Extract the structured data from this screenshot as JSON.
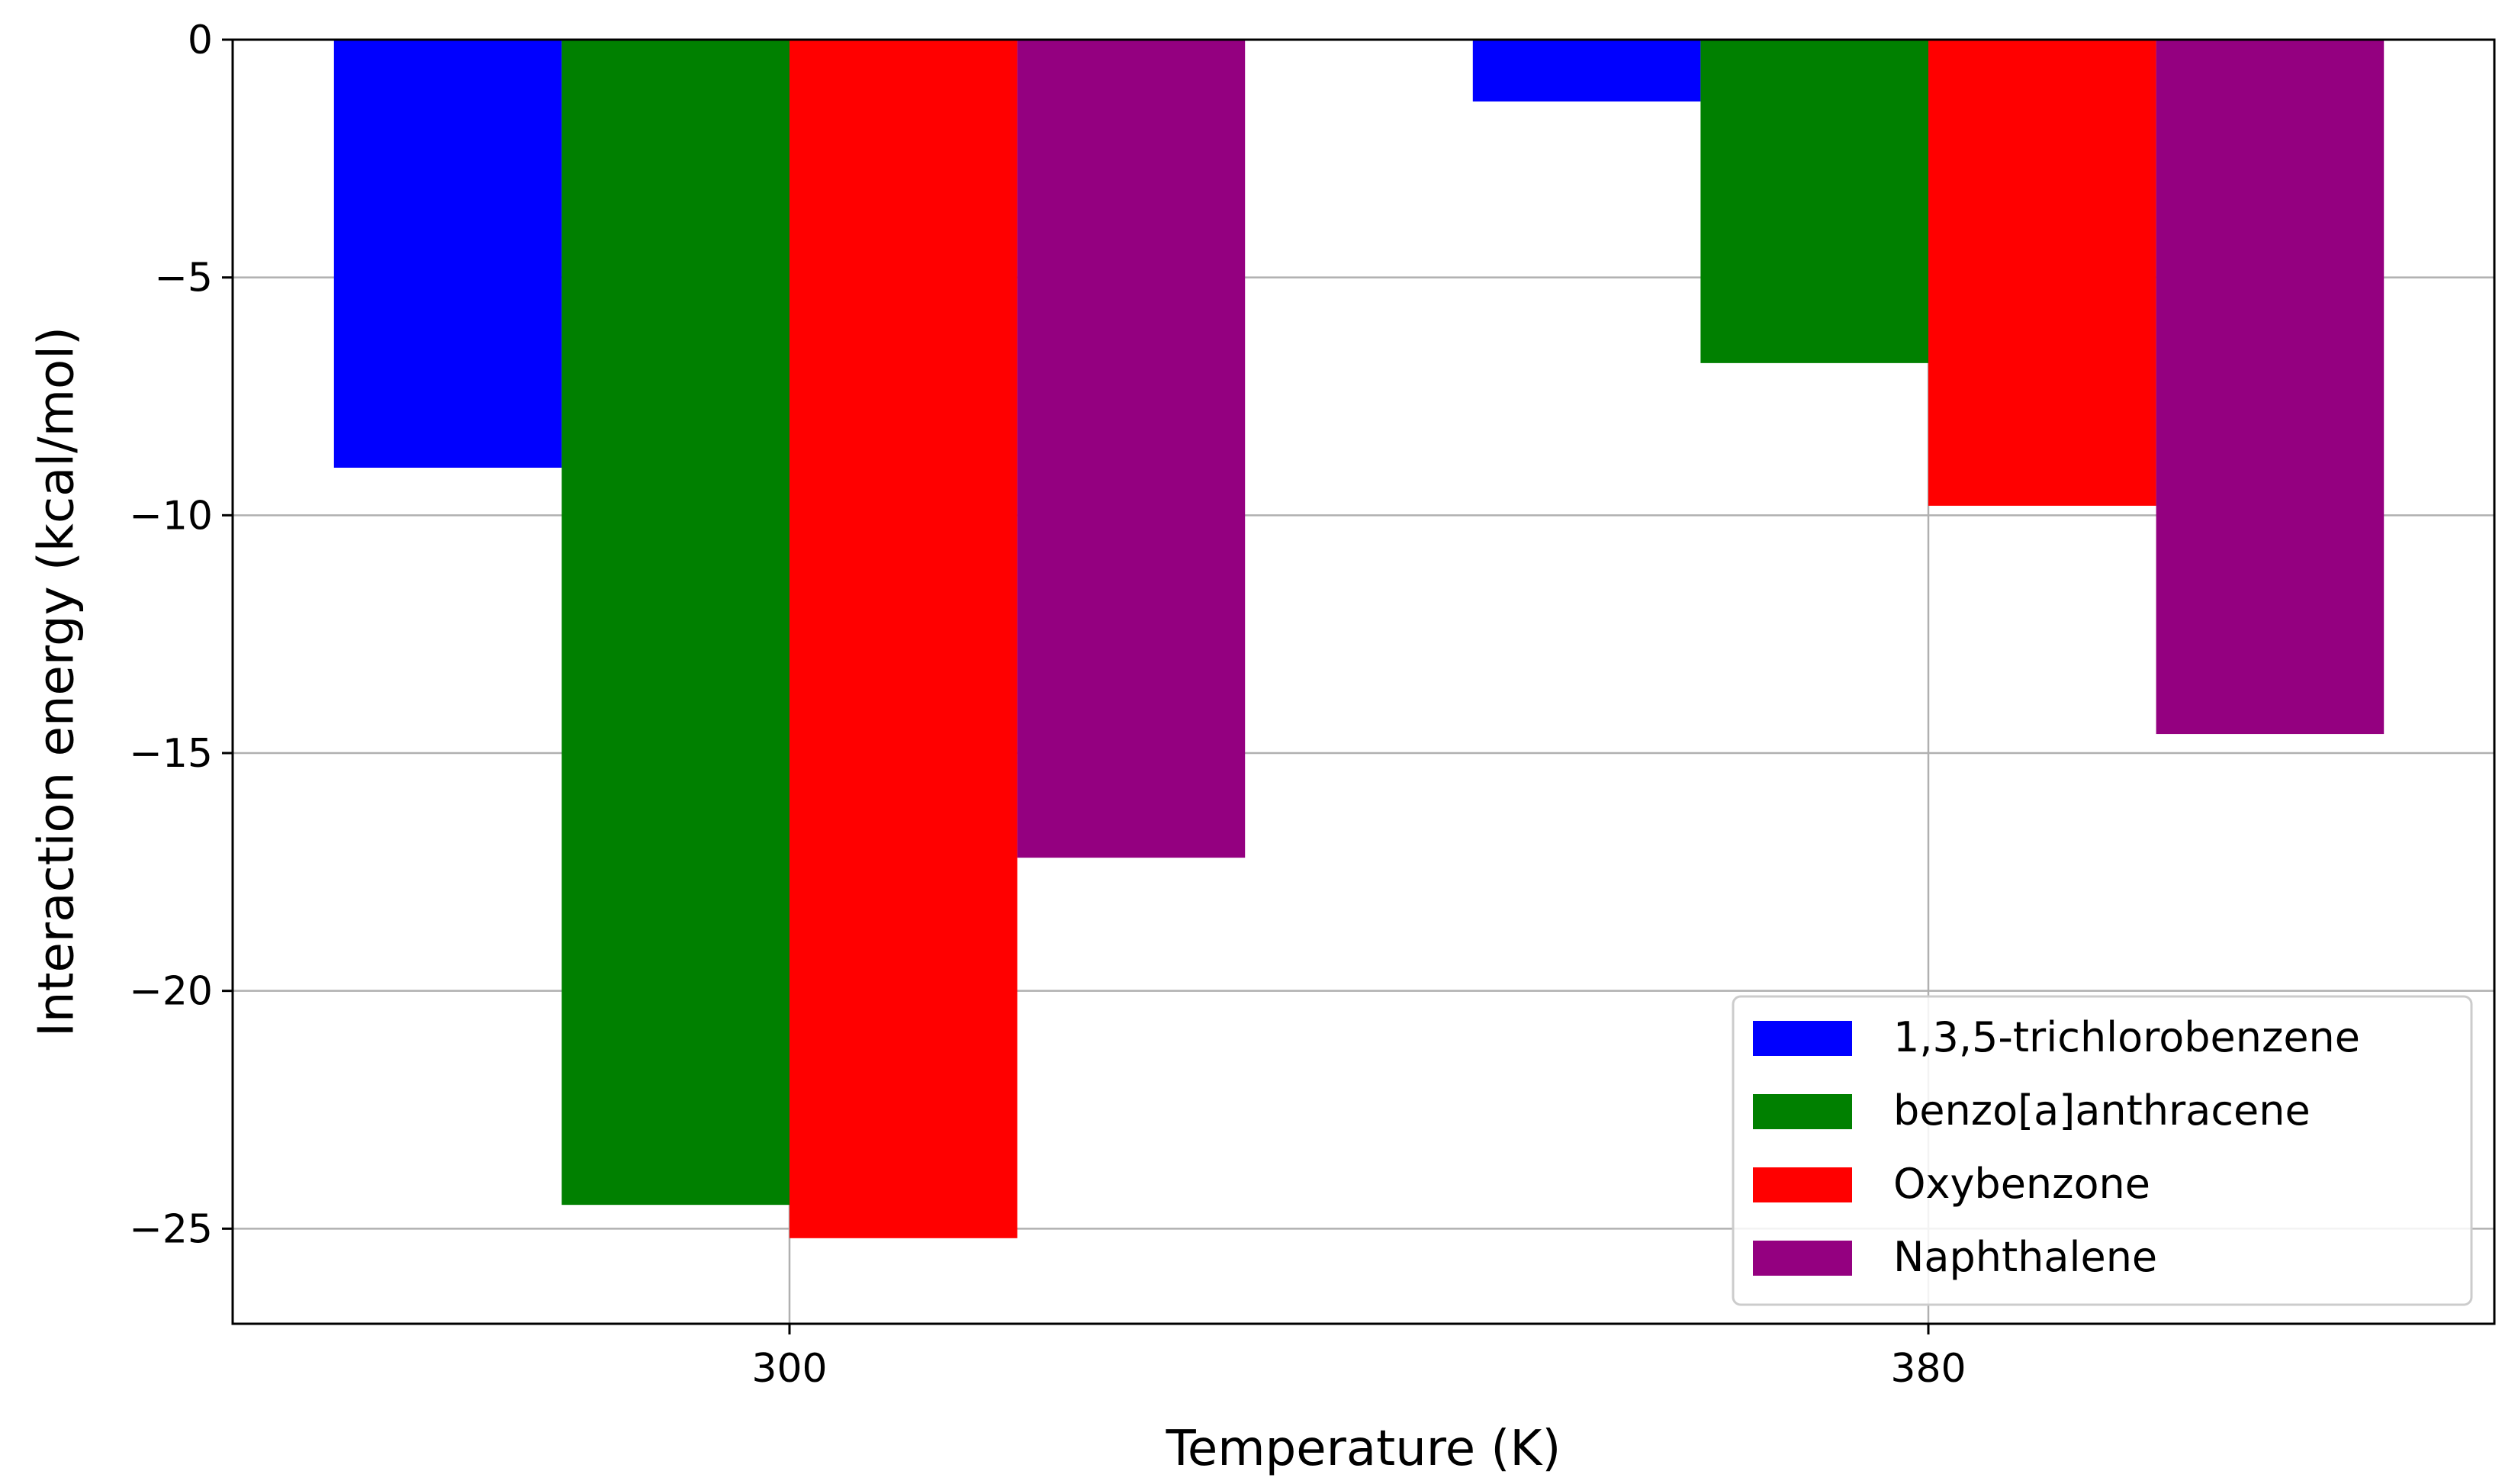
{
  "chart_data": {
    "type": "bar",
    "title": "",
    "xlabel": "Temperature (K)",
    "ylabel": "Interaction energy (kcal/mol)",
    "categories": [
      "300",
      "380"
    ],
    "series": [
      {
        "name": "1,3,5-trichlorobenzene",
        "color": "#0000ff",
        "values": [
          -9.0,
          -1.3
        ]
      },
      {
        "name": "benzo[a]anthracene",
        "color": "#008000",
        "values": [
          -24.5,
          -6.8
        ]
      },
      {
        "name": "Oxybenzone",
        "color": "#ff0000",
        "values": [
          -25.2,
          -9.8
        ]
      },
      {
        "name": "Naphthalene",
        "color": "#940080",
        "values": [
          -17.2,
          -14.6
        ]
      }
    ],
    "ylim": [
      -27,
      0
    ],
    "yticks": [
      0,
      -5,
      -10,
      -15,
      -20,
      -25
    ],
    "ytick_labels": [
      "0",
      "−5",
      "−10",
      "−15",
      "−20",
      "−25"
    ],
    "grid": true,
    "legend_position": "bottom-right"
  }
}
